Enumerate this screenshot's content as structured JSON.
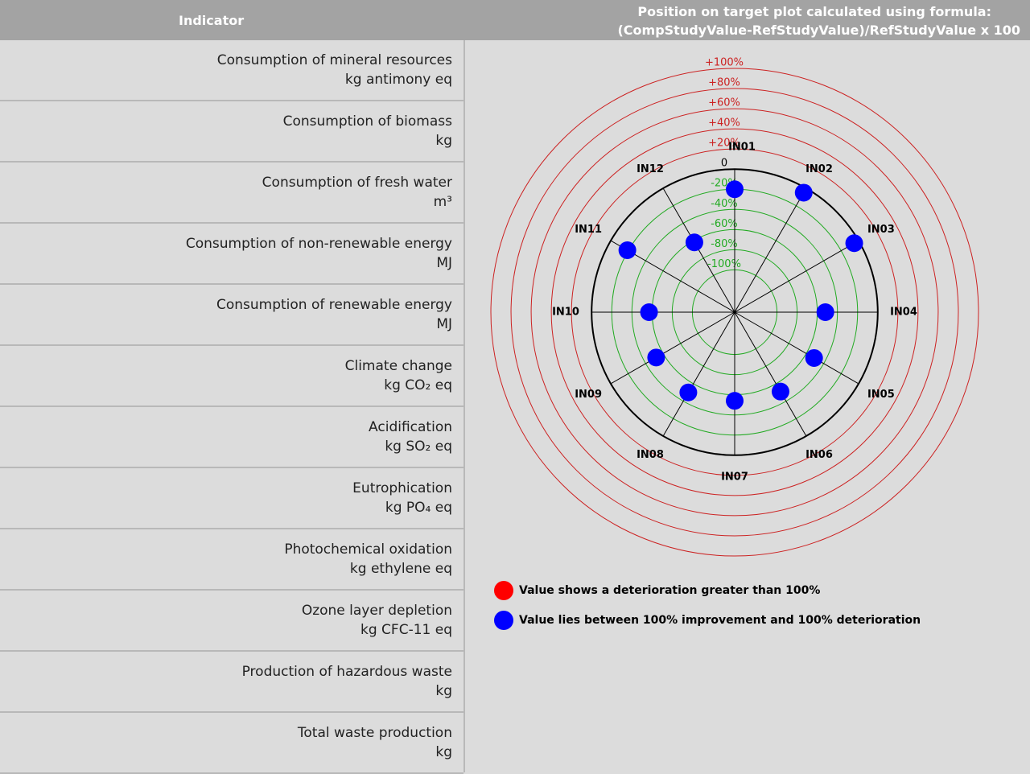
{
  "header": {
    "indicator": "Indicator",
    "formula_title": "Position on target plot calculated using formula:",
    "formula": "(CompStudyValue-RefStudyValue)/RefStudyValue x 100"
  },
  "rows": [
    {
      "name": "Consumption of mineral resources",
      "unit": "kg antimony eq"
    },
    {
      "name": "Consumption of biomass",
      "unit": "kg"
    },
    {
      "name": "Consumption of fresh water",
      "unit": "m³"
    },
    {
      "name": "Consumption of non-renewable energy",
      "unit": "MJ"
    },
    {
      "name": "Consumption of renewable energy",
      "unit": "MJ"
    },
    {
      "name": "Climate change",
      "unit": "kg CO₂ eq"
    },
    {
      "name": "Acidification",
      "unit": "kg SO₂ eq"
    },
    {
      "name": "Eutrophication",
      "unit": "kg PO₄ eq"
    },
    {
      "name": "Photochemical oxidation",
      "unit": "kg ethylene eq"
    },
    {
      "name": "Ozone layer depletion",
      "unit": "kg CFC-11 eq"
    },
    {
      "name": "Production of hazardous waste",
      "unit": "kg"
    },
    {
      "name": "Total waste production",
      "unit": "kg"
    }
  ],
  "chart_data": {
    "type": "target",
    "categories": [
      "IN01",
      "IN02",
      "IN03",
      "IN04",
      "IN05",
      "IN06",
      "IN07",
      "IN08",
      "IN09",
      "IN10",
      "IN11",
      "IN12"
    ],
    "values": [
      -20,
      -5,
      -5,
      -52,
      -51,
      -51,
      -54,
      -50,
      -52,
      -57,
      -19,
      -62
    ],
    "color": "#0000ff",
    "rlim": [
      -142,
      100
    ],
    "rticks": [
      {
        "value": 100,
        "label": "+100%"
      },
      {
        "value": 80,
        "label": "+80%"
      },
      {
        "value": 60,
        "label": "+60%"
      },
      {
        "value": 40,
        "label": "+40%"
      },
      {
        "value": 20,
        "label": "+20%"
      },
      0,
      {
        "value": -20,
        "label": "-20%"
      },
      {
        "value": -40,
        "label": "-40%"
      },
      {
        "value": -60,
        "label": "-60%"
      },
      {
        "value": -80,
        "label": "-80%"
      },
      {
        "value": -100,
        "label": "-100%"
      }
    ],
    "ring_colors": {
      "positive": "#cc2222",
      "zero": "#000000",
      "negative": "#22aa22"
    },
    "legend": [
      {
        "color": "#ff0000",
        "label": "Value shows a deterioration greater than 100%"
      },
      {
        "color": "#0000ff",
        "label": "Value lies between 100% improvement and 100% deterioration"
      }
    ]
  }
}
